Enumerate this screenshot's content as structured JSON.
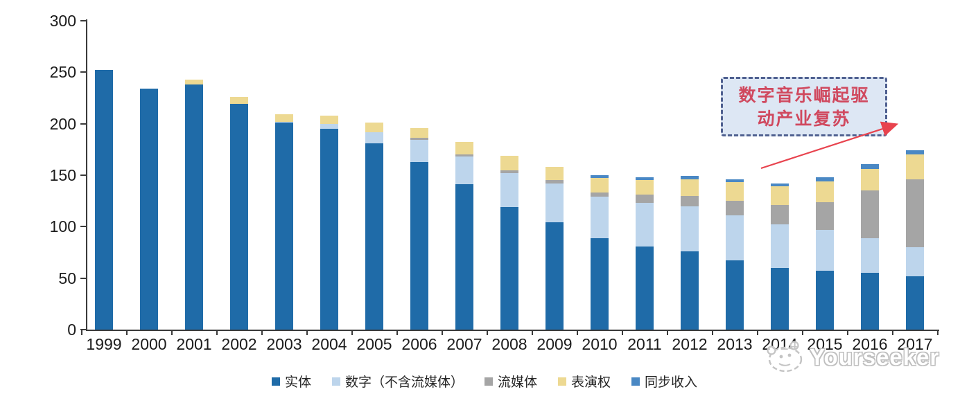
{
  "chart_data": {
    "type": "bar",
    "stacked": true,
    "title": "",
    "xlabel": "",
    "ylabel": "",
    "ylim": [
      0,
      300
    ],
    "yticks": [
      0,
      50,
      100,
      150,
      200,
      250,
      300
    ],
    "grid": false,
    "legend_position": "bottom",
    "categories": [
      "1999",
      "2000",
      "2001",
      "2002",
      "2003",
      "2004",
      "2005",
      "2006",
      "2007",
      "2008",
      "2009",
      "2010",
      "2011",
      "2012",
      "2013",
      "2014",
      "2015",
      "2016",
      "2017"
    ],
    "series": [
      {
        "name": "实体",
        "key": "physical",
        "color": "#1F6BA8",
        "values": [
          252,
          234,
          238,
          219,
          201,
          195,
          181,
          163,
          141,
          119,
          104,
          89,
          81,
          76,
          67,
          60,
          57,
          55,
          52
        ]
      },
      {
        "name": "数字（不含流媒体）",
        "key": "digital-excl-streaming",
        "color": "#BDD5EC",
        "values": [
          0,
          0,
          0,
          0,
          1,
          5,
          11,
          21,
          27,
          33,
          38,
          40,
          42,
          44,
          44,
          42,
          40,
          34,
          28
        ]
      },
      {
        "name": "流媒体",
        "key": "streaming",
        "color": "#A5A5A5",
        "values": [
          0,
          0,
          0,
          0,
          0,
          0,
          0,
          2,
          2,
          3,
          3,
          4,
          8,
          10,
          14,
          19,
          27,
          46,
          66
        ]
      },
      {
        "name": "表演权",
        "key": "performance-rights",
        "color": "#EDD992",
        "values": [
          0,
          0,
          5,
          7,
          7,
          8,
          9,
          10,
          12,
          14,
          13,
          14,
          14,
          16,
          18,
          18,
          20,
          21,
          24
        ]
      },
      {
        "name": "同步收入",
        "key": "sync-revenue",
        "color": "#4A88C4",
        "values": [
          0,
          0,
          0,
          0,
          0,
          0,
          0,
          0,
          0,
          0,
          0,
          3,
          3,
          3,
          3,
          3,
          4,
          5,
          4
        ]
      }
    ]
  },
  "annotation": {
    "text": "数字音乐崛起驱动产业复苏",
    "line1": "数字音乐崛起驱",
    "line2": "动产业复苏",
    "box_fill": "#dde7f4",
    "box_border_color": "#4f6090",
    "text_color": "#d0485e",
    "arrow_color": "#e8434e"
  },
  "watermark": {
    "text": "Yourseeker",
    "logo": "animal-face-logo",
    "color": "#bfbfbf"
  }
}
